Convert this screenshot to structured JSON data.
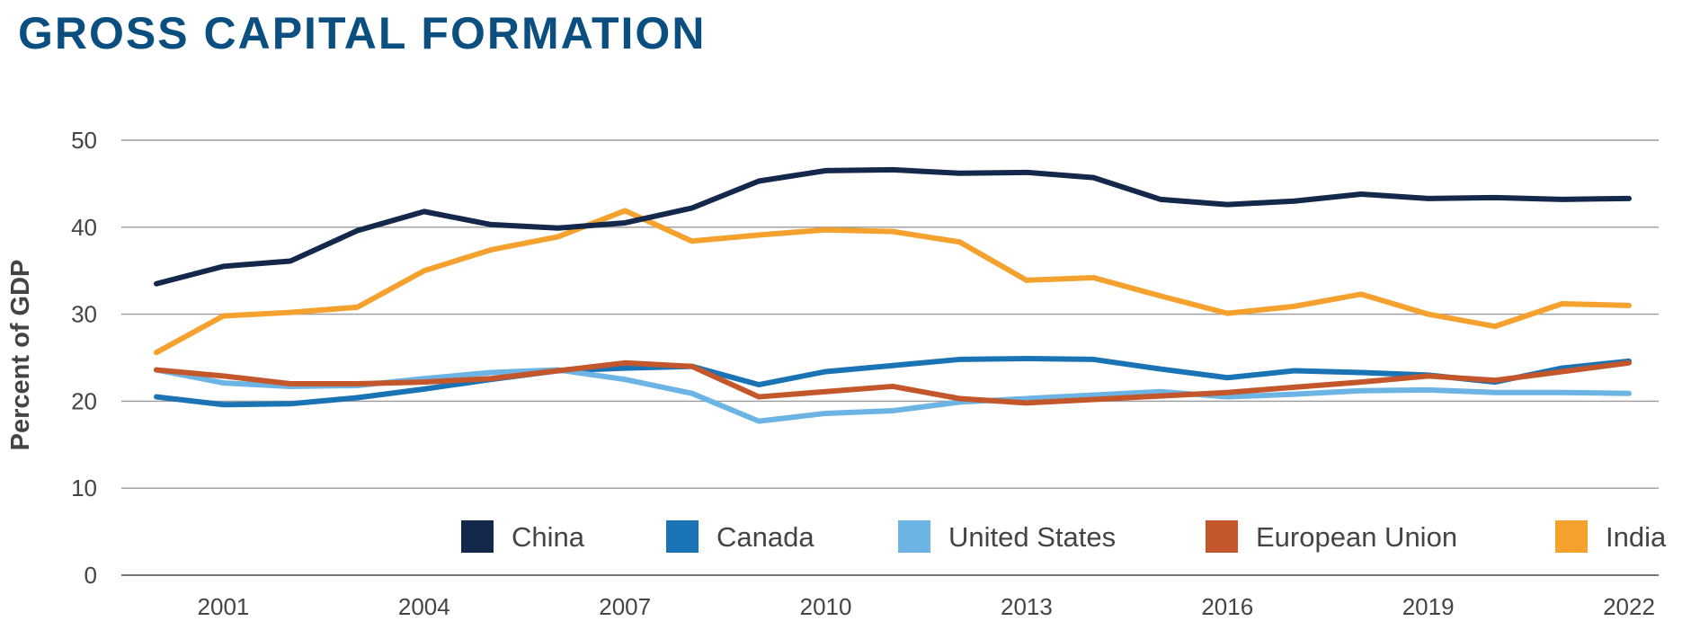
{
  "chart_data": {
    "type": "line",
    "title": "GROSS CAPITAL FORMATION",
    "xlabel": "",
    "ylabel": "Percent of GDP",
    "x": [
      2000,
      2001,
      2002,
      2003,
      2004,
      2005,
      2006,
      2007,
      2008,
      2009,
      2010,
      2011,
      2012,
      2013,
      2014,
      2015,
      2016,
      2017,
      2018,
      2019,
      2020,
      2021,
      2022
    ],
    "x_ticks": [
      2001,
      2004,
      2007,
      2010,
      2013,
      2016,
      2019,
      2022
    ],
    "ylim": [
      0,
      50
    ],
    "y_ticks": [
      0,
      10,
      20,
      30,
      40,
      50
    ],
    "grid": "horizontal",
    "legend_position": "bottom-inside",
    "series": [
      {
        "name": "China",
        "color": "#13284b",
        "values": [
          33.5,
          35.5,
          36.1,
          39.6,
          41.8,
          40.3,
          39.9,
          40.5,
          42.2,
          45.3,
          46.5,
          46.6,
          46.2,
          46.3,
          45.7,
          43.2,
          42.6,
          43.0,
          43.8,
          43.3,
          43.4,
          43.2,
          43.3
        ]
      },
      {
        "name": "Canada",
        "color": "#1a73b4",
        "values": [
          20.5,
          19.6,
          19.7,
          20.4,
          21.4,
          22.5,
          23.5,
          23.8,
          24.0,
          21.9,
          23.4,
          24.1,
          24.8,
          24.9,
          24.8,
          23.7,
          22.7,
          23.5,
          23.3,
          23.0,
          22.2,
          23.8,
          24.6
        ]
      },
      {
        "name": "United States",
        "color": "#6cb4e4",
        "values": [
          23.6,
          22.1,
          21.7,
          21.8,
          22.6,
          23.3,
          23.6,
          22.5,
          20.9,
          17.7,
          18.6,
          18.9,
          19.9,
          20.3,
          20.7,
          21.1,
          20.5,
          20.8,
          21.2,
          21.3,
          21.0,
          21.0,
          20.9
        ]
      },
      {
        "name": "European Union",
        "color": "#c4562b",
        "values": [
          23.6,
          22.9,
          22.0,
          22.0,
          22.2,
          22.6,
          23.5,
          24.4,
          24.0,
          20.5,
          21.1,
          21.7,
          20.3,
          19.8,
          20.2,
          20.6,
          21.0,
          21.6,
          22.2,
          22.9,
          22.4,
          23.4,
          24.4
        ]
      },
      {
        "name": "India",
        "color": "#f5a12e",
        "values": [
          25.6,
          29.8,
          30.2,
          30.8,
          35.0,
          37.4,
          38.9,
          41.9,
          38.4,
          39.1,
          39.7,
          39.5,
          38.3,
          33.9,
          34.2,
          32.1,
          30.1,
          30.9,
          32.3,
          30.0,
          28.6,
          31.2,
          31.0
        ]
      }
    ]
  }
}
